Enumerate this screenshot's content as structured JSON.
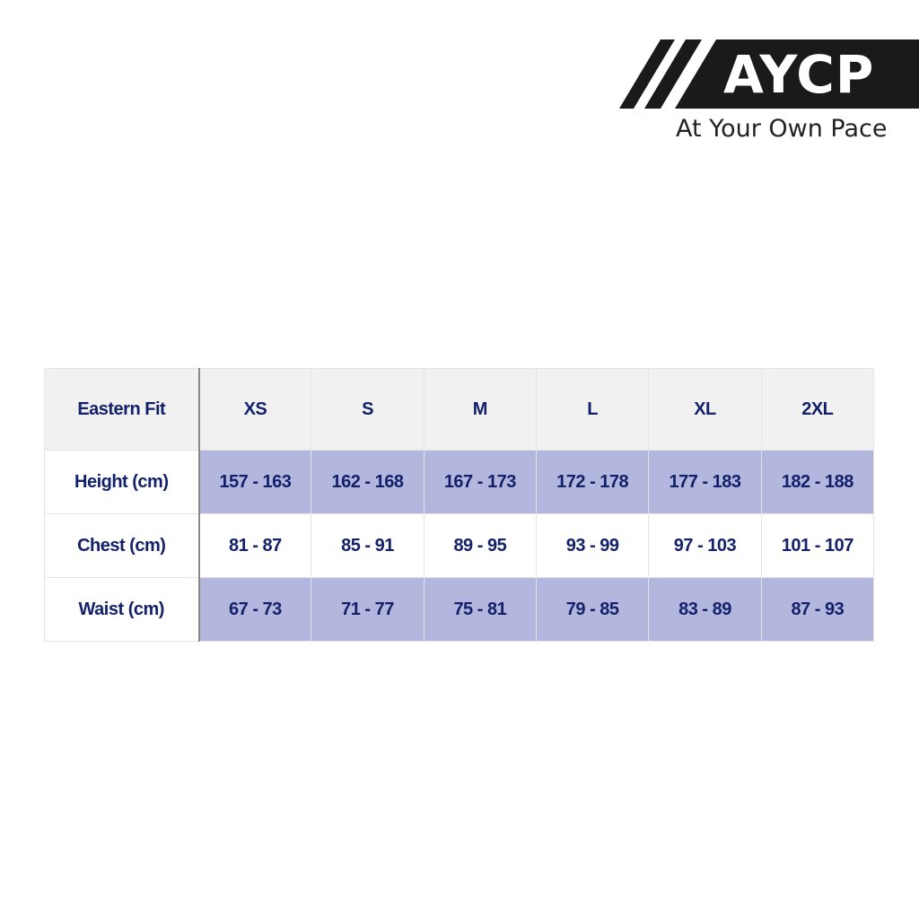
{
  "brand": {
    "logo_text": "AYCP",
    "tagline": "At Your Own Pace"
  },
  "table": {
    "corner_label": "Eastern Fit",
    "sizes": [
      "XS",
      "S",
      "M",
      "L",
      "XL",
      "2XL"
    ],
    "rows": [
      {
        "label": "Height (cm)",
        "values": [
          "157 - 163",
          "162 - 168",
          "167 - 173",
          "172 - 178",
          "177 - 183",
          "182 - 188"
        ]
      },
      {
        "label": "Chest (cm)",
        "values": [
          "81 - 87",
          "85 - 91",
          "89 - 95",
          "93 - 99",
          "97 - 103",
          "101 - 107"
        ]
      },
      {
        "label": "Waist (cm)",
        "values": [
          "67 - 73",
          "71 - 77",
          "75 - 81",
          "79 - 85",
          "83 - 89",
          "87 - 93"
        ]
      }
    ]
  },
  "colors": {
    "text": "#13216a",
    "shade": "#b3b6dd",
    "header_bg": "#f1f1f1",
    "logo_bg": "#1a1a1a"
  }
}
